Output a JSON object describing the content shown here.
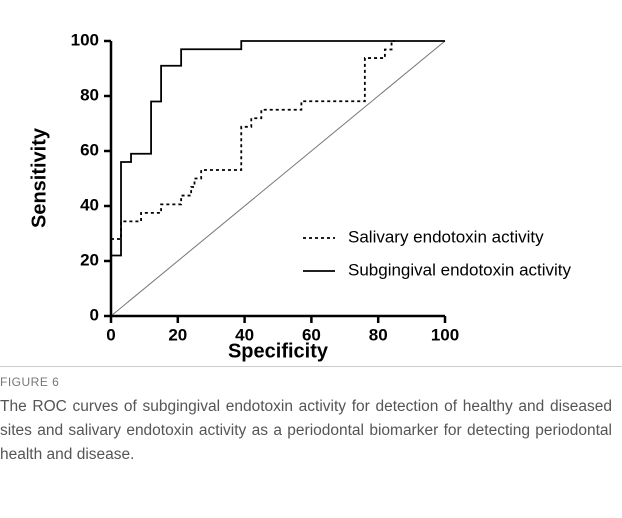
{
  "chart_data": {
    "type": "line",
    "xlabel": "Specificity",
    "ylabel": "Sensitivity",
    "xlim": [
      0,
      100
    ],
    "ylim": [
      0,
      100
    ],
    "xticks": [
      0,
      20,
      40,
      60,
      80,
      100
    ],
    "yticks": [
      0,
      20,
      40,
      60,
      80,
      100
    ],
    "reference_line": true,
    "series": [
      {
        "name": "Salivary endotoxin activity",
        "color": "#000000",
        "linestyle": "dotted",
        "x": [
          0,
          3,
          3,
          9,
          9,
          15,
          15,
          21,
          21,
          24,
          24,
          25,
          25,
          27,
          27,
          39,
          39,
          42,
          42,
          45,
          45,
          57,
          57,
          76,
          76,
          82,
          82,
          84,
          84,
          85
        ],
        "values": [
          28,
          28,
          34.4,
          34.4,
          37.5,
          37.5,
          40.6,
          40.6,
          43.8,
          43.8,
          46.9,
          46.9,
          50,
          50,
          53.1,
          53.1,
          68.8,
          68.8,
          71.9,
          71.9,
          75,
          75,
          78.1,
          78.1,
          93.8,
          93.8,
          96.9,
          96.9,
          100,
          100
        ]
      },
      {
        "name": "Subgingival endotoxin activity",
        "color": "#000000",
        "linestyle": "solid",
        "x": [
          0,
          3,
          3,
          6,
          6,
          12,
          12,
          15,
          15,
          21,
          21,
          39,
          39,
          100
        ],
        "values": [
          22,
          22,
          56,
          56,
          59,
          59,
          78,
          78,
          91,
          91,
          97,
          97,
          100,
          100
        ]
      }
    ]
  },
  "caption_label": "FIGURE 6",
  "caption": "The ROC curves of subgingival endotoxin activity for detection of healthy and diseased sites and salivary endotoxin activity as a periodontal biomarker for detecting periodontal health and disease."
}
